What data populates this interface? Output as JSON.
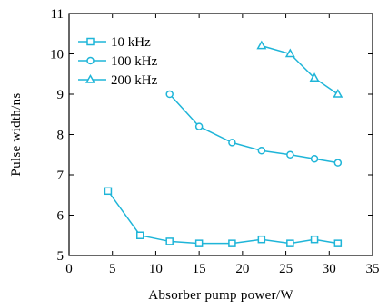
{
  "chart_data": {
    "type": "line",
    "title": "",
    "xlabel": "Absorber pump power/W",
    "ylabel": "Pulse width/ns",
    "xlim": [
      0,
      35
    ],
    "ylim": [
      5,
      11
    ],
    "xticks": [
      0,
      5,
      10,
      15,
      20,
      25,
      30,
      35
    ],
    "yticks": [
      5,
      6,
      7,
      8,
      9,
      10,
      11
    ],
    "grid": false,
    "legend_position": "top-left",
    "color": "#1fb5d8",
    "series": [
      {
        "name": "10 kHz",
        "marker": "square",
        "x": [
          4.5,
          8.2,
          11.6,
          15.0,
          18.8,
          22.2,
          25.5,
          28.3,
          31.0
        ],
        "y": [
          6.6,
          5.5,
          5.35,
          5.3,
          5.3,
          5.4,
          5.3,
          5.4,
          5.3
        ]
      },
      {
        "name": "100 kHz",
        "marker": "circle",
        "x": [
          11.6,
          15.0,
          18.8,
          22.2,
          25.5,
          28.3,
          31.0
        ],
        "y": [
          9.0,
          8.2,
          7.8,
          7.6,
          7.5,
          7.4,
          7.3
        ]
      },
      {
        "name": "200 kHz",
        "marker": "triangle",
        "x": [
          22.2,
          25.5,
          28.3,
          31.0
        ],
        "y": [
          10.2,
          10.0,
          9.4,
          9.0
        ]
      }
    ]
  }
}
